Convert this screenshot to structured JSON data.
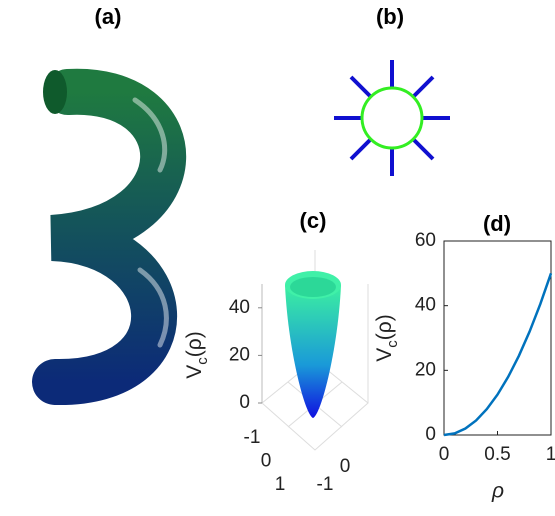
{
  "panels": {
    "a": "(a)",
    "b": "(b)"
  },
  "chart_data": [
    {
      "type": "surface",
      "title": "(c)",
      "ylabel": [
        "V",
        "c",
        "(ρ)"
      ],
      "zlim": [
        0,
        50
      ],
      "zticks": [
        0,
        20,
        40
      ],
      "xticks": [
        -1,
        0,
        1
      ],
      "yticks": [
        -1,
        0
      ]
    },
    {
      "type": "line",
      "title": "(d)",
      "ylabel": [
        "V",
        "c",
        "(ρ)"
      ],
      "xlabel": "ρ",
      "xlim": [
        0,
        1
      ],
      "ylim": [
        0,
        60
      ],
      "xticks": [
        0,
        0.5,
        1
      ],
      "yticks": [
        0,
        20,
        40,
        60
      ],
      "x": [
        0,
        0.1,
        0.2,
        0.3,
        0.4,
        0.5,
        0.6,
        0.7,
        0.8,
        0.9,
        1
      ],
      "series": [
        {
          "color": "#0072bd",
          "values": [
            0,
            0.5,
            2,
            4.5,
            8,
            12.5,
            18,
            24.5,
            32,
            40.5,
            50
          ]
        }
      ]
    }
  ]
}
